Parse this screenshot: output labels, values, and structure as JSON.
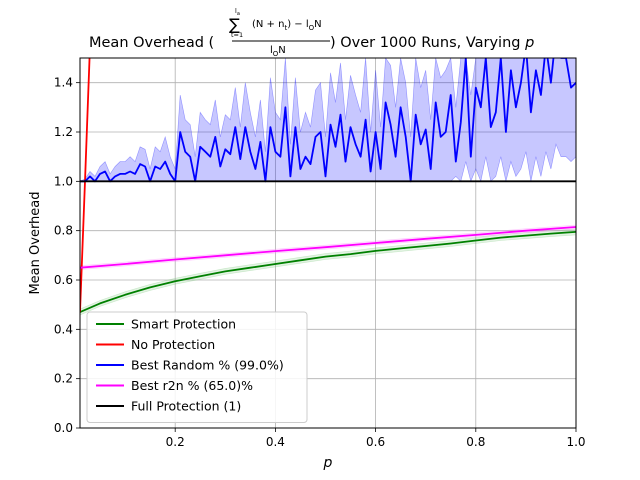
{
  "chart_data": {
    "type": "line",
    "title": {
      "prefix": "Mean Overhead (",
      "sum_upper": "l",
      "sum_upper_sub": "a",
      "sum_symbol": "∑",
      "sum_lower": "t=1",
      "numerator": "(N + n",
      "numerator_sub": "t",
      "numerator_tail": ") − l",
      "numerator_tail_sub": "O",
      "numerator_end": "N",
      "denominator": "l",
      "denominator_sub": "O",
      "denominator_end": "N",
      "suffix": ") Over 1000 Runs, Varying ",
      "variable": "p"
    },
    "xlabel": "p",
    "ylabel": "Mean Overhead",
    "xlim": [
      0.01,
      1.0
    ],
    "ylim": [
      0.0,
      1.5
    ],
    "xticks": [
      "0.2",
      "0.4",
      "0.6",
      "0.8",
      "1.0"
    ],
    "yticks": [
      "0.0",
      "0.2",
      "0.4",
      "0.6",
      "0.8",
      "1.0",
      "1.2",
      "1.4"
    ],
    "grid": true,
    "legend_position": "lower-left",
    "series": [
      {
        "name": "Smart Protection",
        "color": "#008000",
        "band_color": "#7fc97f",
        "x": [
          0.01,
          0.05,
          0.1,
          0.15,
          0.2,
          0.25,
          0.3,
          0.35,
          0.4,
          0.45,
          0.5,
          0.55,
          0.6,
          0.65,
          0.7,
          0.75,
          0.8,
          0.85,
          0.9,
          0.95,
          1.0
        ],
        "y": [
          0.47,
          0.505,
          0.54,
          0.57,
          0.595,
          0.615,
          0.635,
          0.65,
          0.665,
          0.68,
          0.695,
          0.705,
          0.718,
          0.728,
          0.738,
          0.748,
          0.76,
          0.772,
          0.78,
          0.788,
          0.795
        ],
        "band": 0.012
      },
      {
        "name": "No Protection",
        "color": "#ff0000",
        "x": [
          0.01,
          0.02,
          0.03
        ],
        "y": [
          0.47,
          1.0,
          1.55
        ]
      },
      {
        "name": "Best Random % (99.0%)",
        "color": "#0000ff",
        "band_color": "#0000ff",
        "x": [
          0.01,
          0.02,
          0.03,
          0.04,
          0.05,
          0.06,
          0.07,
          0.08,
          0.09,
          0.1,
          0.11,
          0.12,
          0.13,
          0.14,
          0.15,
          0.16,
          0.17,
          0.18,
          0.19,
          0.2,
          0.21,
          0.22,
          0.23,
          0.24,
          0.25,
          0.26,
          0.27,
          0.28,
          0.29,
          0.3,
          0.31,
          0.32,
          0.33,
          0.34,
          0.35,
          0.36,
          0.37,
          0.38,
          0.39,
          0.4,
          0.41,
          0.42,
          0.43,
          0.44,
          0.45,
          0.46,
          0.47,
          0.48,
          0.49,
          0.5,
          0.51,
          0.52,
          0.53,
          0.54,
          0.55,
          0.56,
          0.57,
          0.58,
          0.59,
          0.6,
          0.61,
          0.62,
          0.63,
          0.64,
          0.65,
          0.66,
          0.67,
          0.68,
          0.69,
          0.7,
          0.71,
          0.72,
          0.73,
          0.74,
          0.75,
          0.76,
          0.77,
          0.78,
          0.79,
          0.8,
          0.81,
          0.82,
          0.83,
          0.84,
          0.85,
          0.86,
          0.87,
          0.88,
          0.89,
          0.9,
          0.91,
          0.92,
          0.93,
          0.94,
          0.95,
          0.96,
          0.97,
          0.98,
          0.99,
          1.0
        ],
        "y": [
          1.0,
          1.0,
          1.02,
          1.0,
          1.03,
          1.04,
          1.0,
          1.02,
          1.03,
          1.03,
          1.04,
          1.03,
          1.07,
          1.06,
          1.0,
          1.06,
          1.05,
          1.08,
          1.03,
          1.0,
          1.2,
          1.12,
          1.1,
          1.0,
          1.14,
          1.12,
          1.1,
          1.18,
          1.06,
          1.13,
          1.11,
          1.22,
          1.09,
          1.22,
          1.12,
          1.05,
          1.16,
          1.0,
          1.22,
          1.12,
          1.1,
          1.3,
          1.02,
          1.22,
          1.05,
          1.1,
          1.07,
          1.18,
          1.2,
          1.02,
          1.23,
          1.14,
          1.27,
          1.08,
          1.22,
          1.15,
          1.1,
          1.25,
          1.04,
          1.2,
          1.05,
          1.32,
          1.23,
          1.1,
          1.3,
          1.18,
          1.0,
          1.27,
          1.15,
          1.21,
          1.05,
          1.32,
          1.18,
          1.2,
          1.35,
          1.08,
          1.24,
          1.5,
          1.1,
          1.38,
          1.3,
          1.5,
          1.22,
          1.28,
          1.5,
          1.2,
          1.45,
          1.3,
          1.4,
          1.55,
          1.28,
          1.45,
          1.35,
          1.55,
          1.4,
          1.6,
          1.5,
          1.5,
          1.38,
          1.4
        ],
        "band_lower": [
          1.0,
          1.0,
          1.0,
          1.0,
          1.0,
          1.0,
          1.0,
          1.0,
          1.0,
          1.0,
          1.0,
          1.0,
          1.0,
          1.0,
          1.0,
          1.0,
          1.0,
          1.0,
          1.0,
          1.0,
          1.0,
          1.0,
          1.0,
          1.0,
          1.0,
          1.0,
          1.0,
          1.0,
          1.0,
          1.0,
          1.0,
          1.0,
          1.0,
          1.0,
          1.0,
          1.0,
          1.0,
          1.0,
          1.0,
          1.0,
          1.0,
          1.0,
          1.0,
          1.0,
          1.0,
          1.0,
          1.0,
          1.0,
          1.0,
          1.0,
          1.0,
          1.0,
          1.0,
          1.0,
          1.0,
          1.0,
          1.0,
          1.0,
          1.0,
          1.0,
          1.0,
          1.0,
          1.0,
          1.0,
          1.0,
          1.0,
          1.0,
          1.0,
          1.0,
          1.0,
          1.0,
          1.0,
          1.0,
          1.0,
          1.0,
          1.02,
          1.0,
          1.08,
          1.0,
          1.05,
          1.0,
          1.1,
          1.0,
          1.02,
          1.1,
          1.0,
          1.08,
          1.02,
          1.05,
          1.12,
          1.0,
          1.1,
          1.02,
          1.12,
          1.05,
          1.15,
          1.1,
          1.1,
          1.08,
          1.1
        ],
        "band_upper": [
          1.0,
          1.01,
          1.04,
          1.02,
          1.06,
          1.08,
          1.03,
          1.06,
          1.08,
          1.08,
          1.1,
          1.08,
          1.14,
          1.13,
          1.05,
          1.14,
          1.12,
          1.18,
          1.1,
          1.05,
          1.35,
          1.25,
          1.23,
          1.1,
          1.28,
          1.25,
          1.23,
          1.33,
          1.18,
          1.27,
          1.25,
          1.38,
          1.22,
          1.4,
          1.28,
          1.18,
          1.33,
          1.12,
          1.42,
          1.28,
          1.25,
          1.5,
          1.15,
          1.42,
          1.2,
          1.28,
          1.22,
          1.37,
          1.4,
          1.18,
          1.44,
          1.32,
          1.48,
          1.25,
          1.43,
          1.35,
          1.28,
          1.5,
          1.2,
          1.45,
          1.22,
          1.5,
          1.47,
          1.3,
          1.5,
          1.4,
          1.18,
          1.5,
          1.38,
          1.45,
          1.25,
          1.5,
          1.42,
          1.45,
          1.5,
          1.3,
          1.5,
          1.5,
          1.35,
          1.5,
          1.5,
          1.5,
          1.5,
          1.5,
          1.5,
          1.5,
          1.5,
          1.5,
          1.5,
          1.5,
          1.5,
          1.5,
          1.5,
          1.5,
          1.5,
          1.5,
          1.5,
          1.5,
          1.5,
          1.5
        ]
      },
      {
        "name": "Best r2n % (65.0)%",
        "color": "#ff00ff",
        "band_color": "#ff80ff",
        "x": [
          0.01,
          0.1,
          0.2,
          0.3,
          0.4,
          0.5,
          0.6,
          0.7,
          0.8,
          0.9,
          1.0
        ],
        "y": [
          0.65,
          0.665,
          0.683,
          0.7,
          0.717,
          0.733,
          0.75,
          0.767,
          0.783,
          0.8,
          0.815
        ],
        "band": 0.008
      },
      {
        "name": "Full Protection (1)",
        "color": "#000000",
        "x": [
          0.01,
          1.0
        ],
        "y": [
          1.0,
          1.0
        ]
      }
    ]
  }
}
